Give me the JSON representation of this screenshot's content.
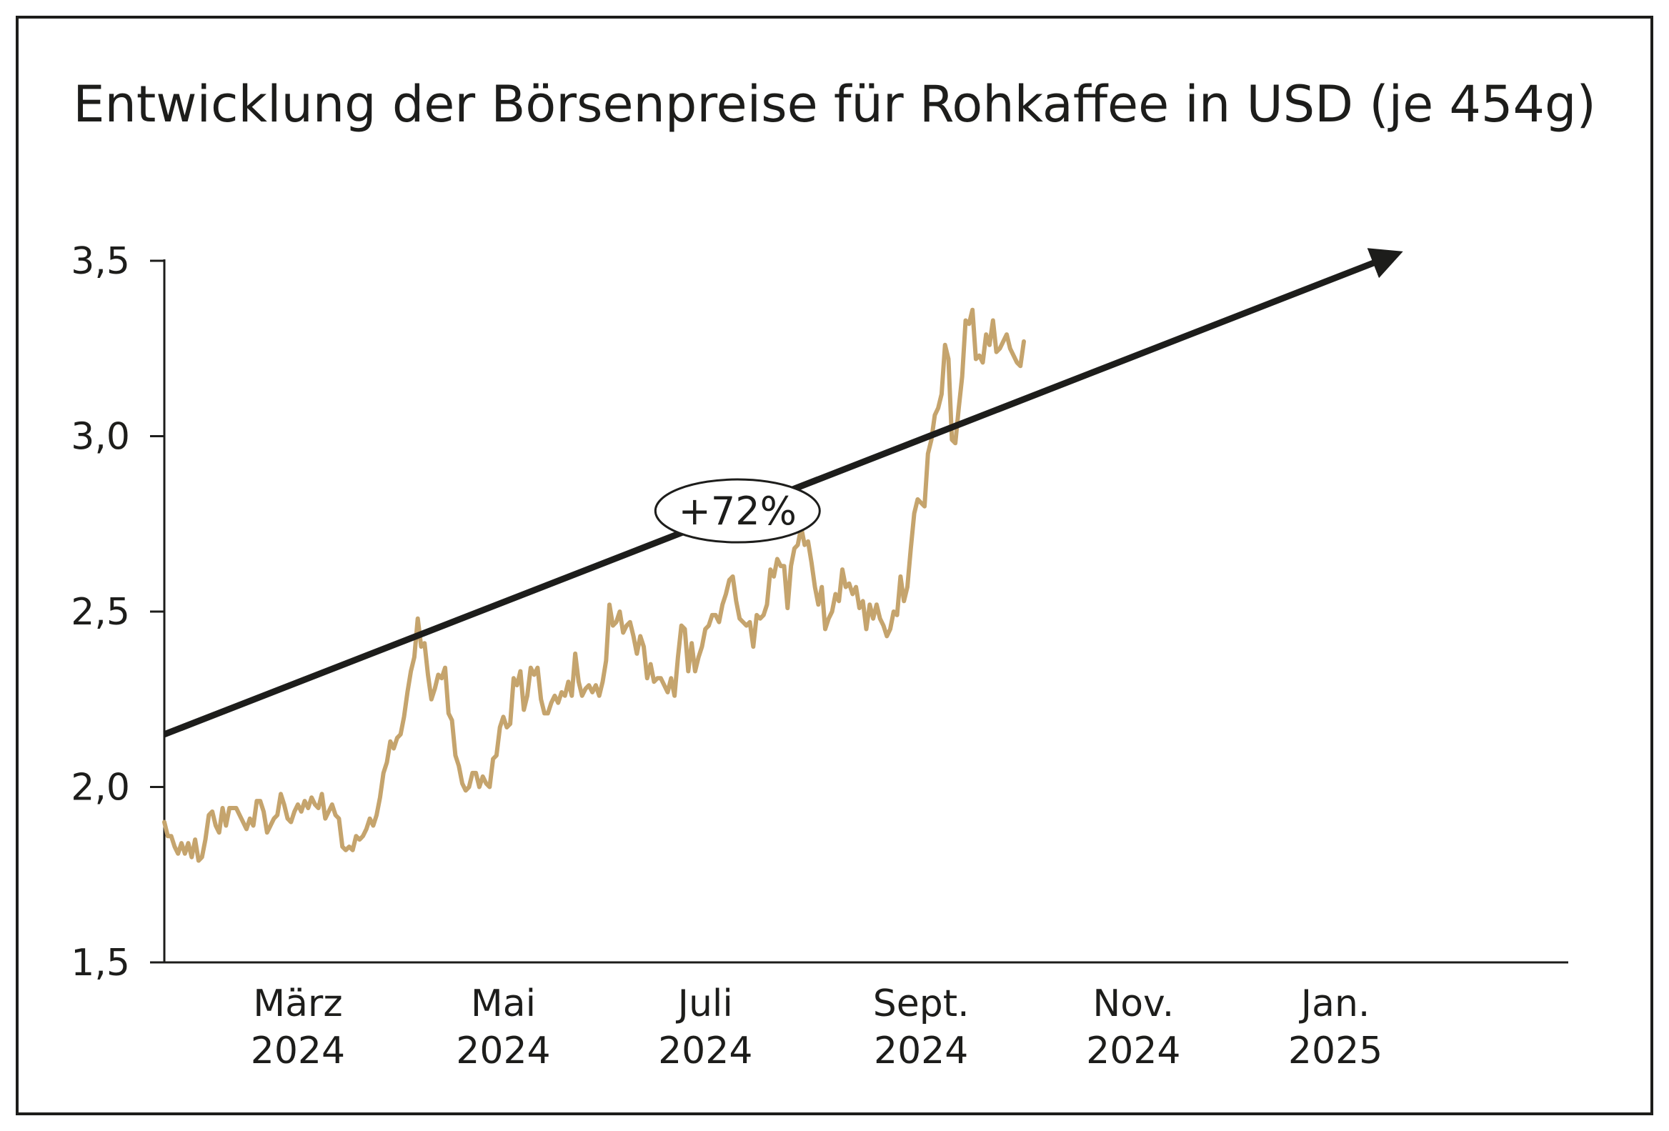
{
  "chart_data": {
    "type": "line",
    "title": "Entwicklung der Börsenpreise für Rohkaffee in USD (je 454g)",
    "xlabel": "",
    "ylabel": "",
    "ylim": [
      1.5,
      3.5
    ],
    "y_ticks": [
      "1,5",
      "2,0",
      "2,5",
      "3,0",
      "3,5"
    ],
    "y_tick_values": [
      1.5,
      2.0,
      2.5,
      3.0,
      3.5
    ],
    "x_ticks": [
      {
        "month": "März",
        "year": "2024",
        "x": 39
      },
      {
        "month": "Mai",
        "year": "2024",
        "x": 99
      },
      {
        "month": "Juli",
        "year": "2024",
        "x": 158
      },
      {
        "month": "Sept.",
        "year": "2024",
        "x": 221
      },
      {
        "month": "Nov.",
        "year": "2024",
        "x": 283
      },
      {
        "month": "Jan.",
        "year": "2025",
        "x": 342
      }
    ],
    "x_range": [
      0,
      410
    ],
    "grid": false,
    "line_color": "#c5a46d",
    "series": [
      {
        "values": [
          [
            0,
            1.9
          ],
          [
            1,
            1.86
          ],
          [
            2,
            1.86
          ],
          [
            3,
            1.83
          ],
          [
            4,
            1.81
          ],
          [
            5,
            1.84
          ],
          [
            6,
            1.81
          ],
          [
            7,
            1.84
          ],
          [
            8,
            1.8
          ],
          [
            9,
            1.85
          ],
          [
            10,
            1.79
          ],
          [
            11,
            1.8
          ],
          [
            12,
            1.85
          ],
          [
            13,
            1.92
          ],
          [
            14,
            1.93
          ],
          [
            15,
            1.89
          ],
          [
            16,
            1.87
          ],
          [
            17,
            1.94
          ],
          [
            18,
            1.89
          ],
          [
            19,
            1.94
          ],
          [
            20,
            1.94
          ],
          [
            21,
            1.94
          ],
          [
            22,
            1.92
          ],
          [
            23,
            1.9
          ],
          [
            24,
            1.88
          ],
          [
            25,
            1.91
          ],
          [
            26,
            1.89
          ],
          [
            27,
            1.96
          ],
          [
            28,
            1.96
          ],
          [
            29,
            1.93
          ],
          [
            30,
            1.87
          ],
          [
            31,
            1.89
          ],
          [
            32,
            1.91
          ],
          [
            33,
            1.92
          ],
          [
            34,
            1.98
          ],
          [
            35,
            1.95
          ],
          [
            36,
            1.91
          ],
          [
            37,
            1.9
          ],
          [
            38,
            1.93
          ],
          [
            39,
            1.95
          ],
          [
            40,
            1.93
          ],
          [
            41,
            1.96
          ],
          [
            42,
            1.94
          ],
          [
            43,
            1.97
          ],
          [
            44,
            1.95
          ],
          [
            45,
            1.94
          ],
          [
            46,
            1.98
          ],
          [
            47,
            1.91
          ],
          [
            48,
            1.93
          ],
          [
            49,
            1.95
          ],
          [
            50,
            1.92
          ],
          [
            51,
            1.91
          ],
          [
            52,
            1.83
          ],
          [
            53,
            1.82
          ],
          [
            54,
            1.83
          ],
          [
            55,
            1.82
          ],
          [
            56,
            1.86
          ],
          [
            57,
            1.85
          ],
          [
            58,
            1.86
          ],
          [
            59,
            1.88
          ],
          [
            60,
            1.91
          ],
          [
            61,
            1.89
          ],
          [
            62,
            1.92
          ],
          [
            63,
            1.97
          ],
          [
            64,
            2.04
          ],
          [
            65,
            2.07
          ],
          [
            66,
            2.13
          ],
          [
            67,
            2.11
          ],
          [
            68,
            2.14
          ],
          [
            69,
            2.15
          ],
          [
            70,
            2.2
          ],
          [
            71,
            2.27
          ],
          [
            72,
            2.33
          ],
          [
            73,
            2.37
          ],
          [
            74,
            2.48
          ],
          [
            75,
            2.4
          ],
          [
            76,
            2.41
          ],
          [
            77,
            2.32
          ],
          [
            78,
            2.25
          ],
          [
            79,
            2.28
          ],
          [
            80,
            2.32
          ],
          [
            81,
            2.31
          ],
          [
            82,
            2.34
          ],
          [
            83,
            2.21
          ],
          [
            84,
            2.19
          ],
          [
            85,
            2.09
          ],
          [
            86,
            2.06
          ],
          [
            87,
            2.01
          ],
          [
            88,
            1.99
          ],
          [
            89,
            2.0
          ],
          [
            90,
            2.04
          ],
          [
            91,
            2.04
          ],
          [
            92,
            2.0
          ],
          [
            93,
            2.03
          ],
          [
            94,
            2.01
          ],
          [
            95,
            2.0
          ],
          [
            96,
            2.08
          ],
          [
            97,
            2.09
          ],
          [
            98,
            2.17
          ],
          [
            99,
            2.2
          ],
          [
            100,
            2.17
          ],
          [
            101,
            2.18
          ],
          [
            102,
            2.31
          ],
          [
            103,
            2.29
          ],
          [
            104,
            2.33
          ],
          [
            105,
            2.22
          ],
          [
            106,
            2.26
          ],
          [
            107,
            2.34
          ],
          [
            108,
            2.32
          ],
          [
            109,
            2.34
          ],
          [
            110,
            2.25
          ],
          [
            111,
            2.21
          ],
          [
            112,
            2.21
          ],
          [
            113,
            2.24
          ],
          [
            114,
            2.26
          ],
          [
            115,
            2.24
          ],
          [
            116,
            2.27
          ],
          [
            117,
            2.26
          ],
          [
            118,
            2.3
          ],
          [
            119,
            2.26
          ],
          [
            120,
            2.38
          ],
          [
            121,
            2.3
          ],
          [
            122,
            2.26
          ],
          [
            123,
            2.28
          ],
          [
            124,
            2.29
          ],
          [
            125,
            2.27
          ],
          [
            126,
            2.29
          ],
          [
            127,
            2.26
          ],
          [
            128,
            2.3
          ],
          [
            129,
            2.36
          ],
          [
            130,
            2.52
          ],
          [
            131,
            2.46
          ],
          [
            132,
            2.47
          ],
          [
            133,
            2.5
          ],
          [
            134,
            2.44
          ],
          [
            135,
            2.46
          ],
          [
            136,
            2.47
          ],
          [
            137,
            2.43
          ],
          [
            138,
            2.38
          ],
          [
            139,
            2.43
          ],
          [
            140,
            2.4
          ],
          [
            141,
            2.31
          ],
          [
            142,
            2.35
          ],
          [
            143,
            2.3
          ],
          [
            144,
            2.31
          ],
          [
            145,
            2.31
          ],
          [
            146,
            2.29
          ],
          [
            147,
            2.27
          ],
          [
            148,
            2.31
          ],
          [
            149,
            2.26
          ],
          [
            150,
            2.37
          ],
          [
            151,
            2.46
          ],
          [
            152,
            2.45
          ],
          [
            153,
            2.33
          ],
          [
            154,
            2.41
          ],
          [
            155,
            2.33
          ],
          [
            156,
            2.37
          ],
          [
            157,
            2.4
          ],
          [
            158,
            2.45
          ],
          [
            159,
            2.46
          ],
          [
            160,
            2.49
          ],
          [
            161,
            2.49
          ],
          [
            162,
            2.47
          ],
          [
            163,
            2.52
          ],
          [
            164,
            2.55
          ],
          [
            165,
            2.59
          ],
          [
            166,
            2.6
          ],
          [
            167,
            2.53
          ],
          [
            168,
            2.48
          ],
          [
            169,
            2.47
          ],
          [
            170,
            2.46
          ],
          [
            171,
            2.47
          ],
          [
            172,
            2.4
          ],
          [
            173,
            2.49
          ],
          [
            174,
            2.48
          ],
          [
            175,
            2.49
          ],
          [
            176,
            2.52
          ],
          [
            177,
            2.62
          ],
          [
            178,
            2.6
          ],
          [
            179,
            2.65
          ],
          [
            180,
            2.63
          ],
          [
            181,
            2.63
          ],
          [
            182,
            2.51
          ],
          [
            183,
            2.63
          ],
          [
            184,
            2.68
          ],
          [
            185,
            2.69
          ],
          [
            186,
            2.74
          ],
          [
            187,
            2.69
          ],
          [
            188,
            2.7
          ],
          [
            189,
            2.64
          ],
          [
            190,
            2.57
          ],
          [
            191,
            2.52
          ],
          [
            192,
            2.57
          ],
          [
            193,
            2.45
          ],
          [
            194,
            2.48
          ],
          [
            195,
            2.5
          ],
          [
            196,
            2.55
          ],
          [
            197,
            2.53
          ],
          [
            198,
            2.62
          ],
          [
            199,
            2.57
          ],
          [
            200,
            2.58
          ],
          [
            201,
            2.55
          ],
          [
            202,
            2.57
          ],
          [
            203,
            2.51
          ],
          [
            204,
            2.53
          ],
          [
            205,
            2.45
          ],
          [
            206,
            2.52
          ],
          [
            207,
            2.48
          ],
          [
            208,
            2.52
          ],
          [
            209,
            2.48
          ],
          [
            210,
            2.46
          ],
          [
            211,
            2.43
          ],
          [
            212,
            2.45
          ],
          [
            213,
            2.5
          ],
          [
            214,
            2.49
          ],
          [
            215,
            2.6
          ],
          [
            216,
            2.53
          ],
          [
            217,
            2.57
          ],
          [
            218,
            2.68
          ],
          [
            219,
            2.78
          ],
          [
            220,
            2.82
          ],
          [
            221,
            2.81
          ],
          [
            222,
            2.8
          ],
          [
            223,
            2.95
          ],
          [
            224,
            2.99
          ],
          [
            225,
            3.06
          ],
          [
            226,
            3.08
          ],
          [
            227,
            3.12
          ],
          [
            228,
            3.26
          ],
          [
            229,
            3.22
          ],
          [
            230,
            2.99
          ],
          [
            231,
            2.98
          ],
          [
            232,
            3.08
          ],
          [
            233,
            3.17
          ],
          [
            234,
            3.33
          ],
          [
            235,
            3.32
          ],
          [
            236,
            3.36
          ],
          [
            237,
            3.22
          ],
          [
            238,
            3.23
          ],
          [
            239,
            3.21
          ],
          [
            240,
            3.29
          ],
          [
            241,
            3.26
          ],
          [
            242,
            3.33
          ],
          [
            243,
            3.24
          ],
          [
            244,
            3.25
          ],
          [
            245,
            3.27
          ],
          [
            246,
            3.29
          ],
          [
            247,
            3.25
          ],
          [
            248,
            3.23
          ],
          [
            249,
            3.21
          ],
          [
            250,
            3.2
          ],
          [
            251,
            3.27
          ]
        ]
      }
    ],
    "trend_arrow": {
      "from": [
        0,
        2.15
      ],
      "to": [
        360,
        3.52
      ]
    },
    "annotation": "+72%"
  }
}
